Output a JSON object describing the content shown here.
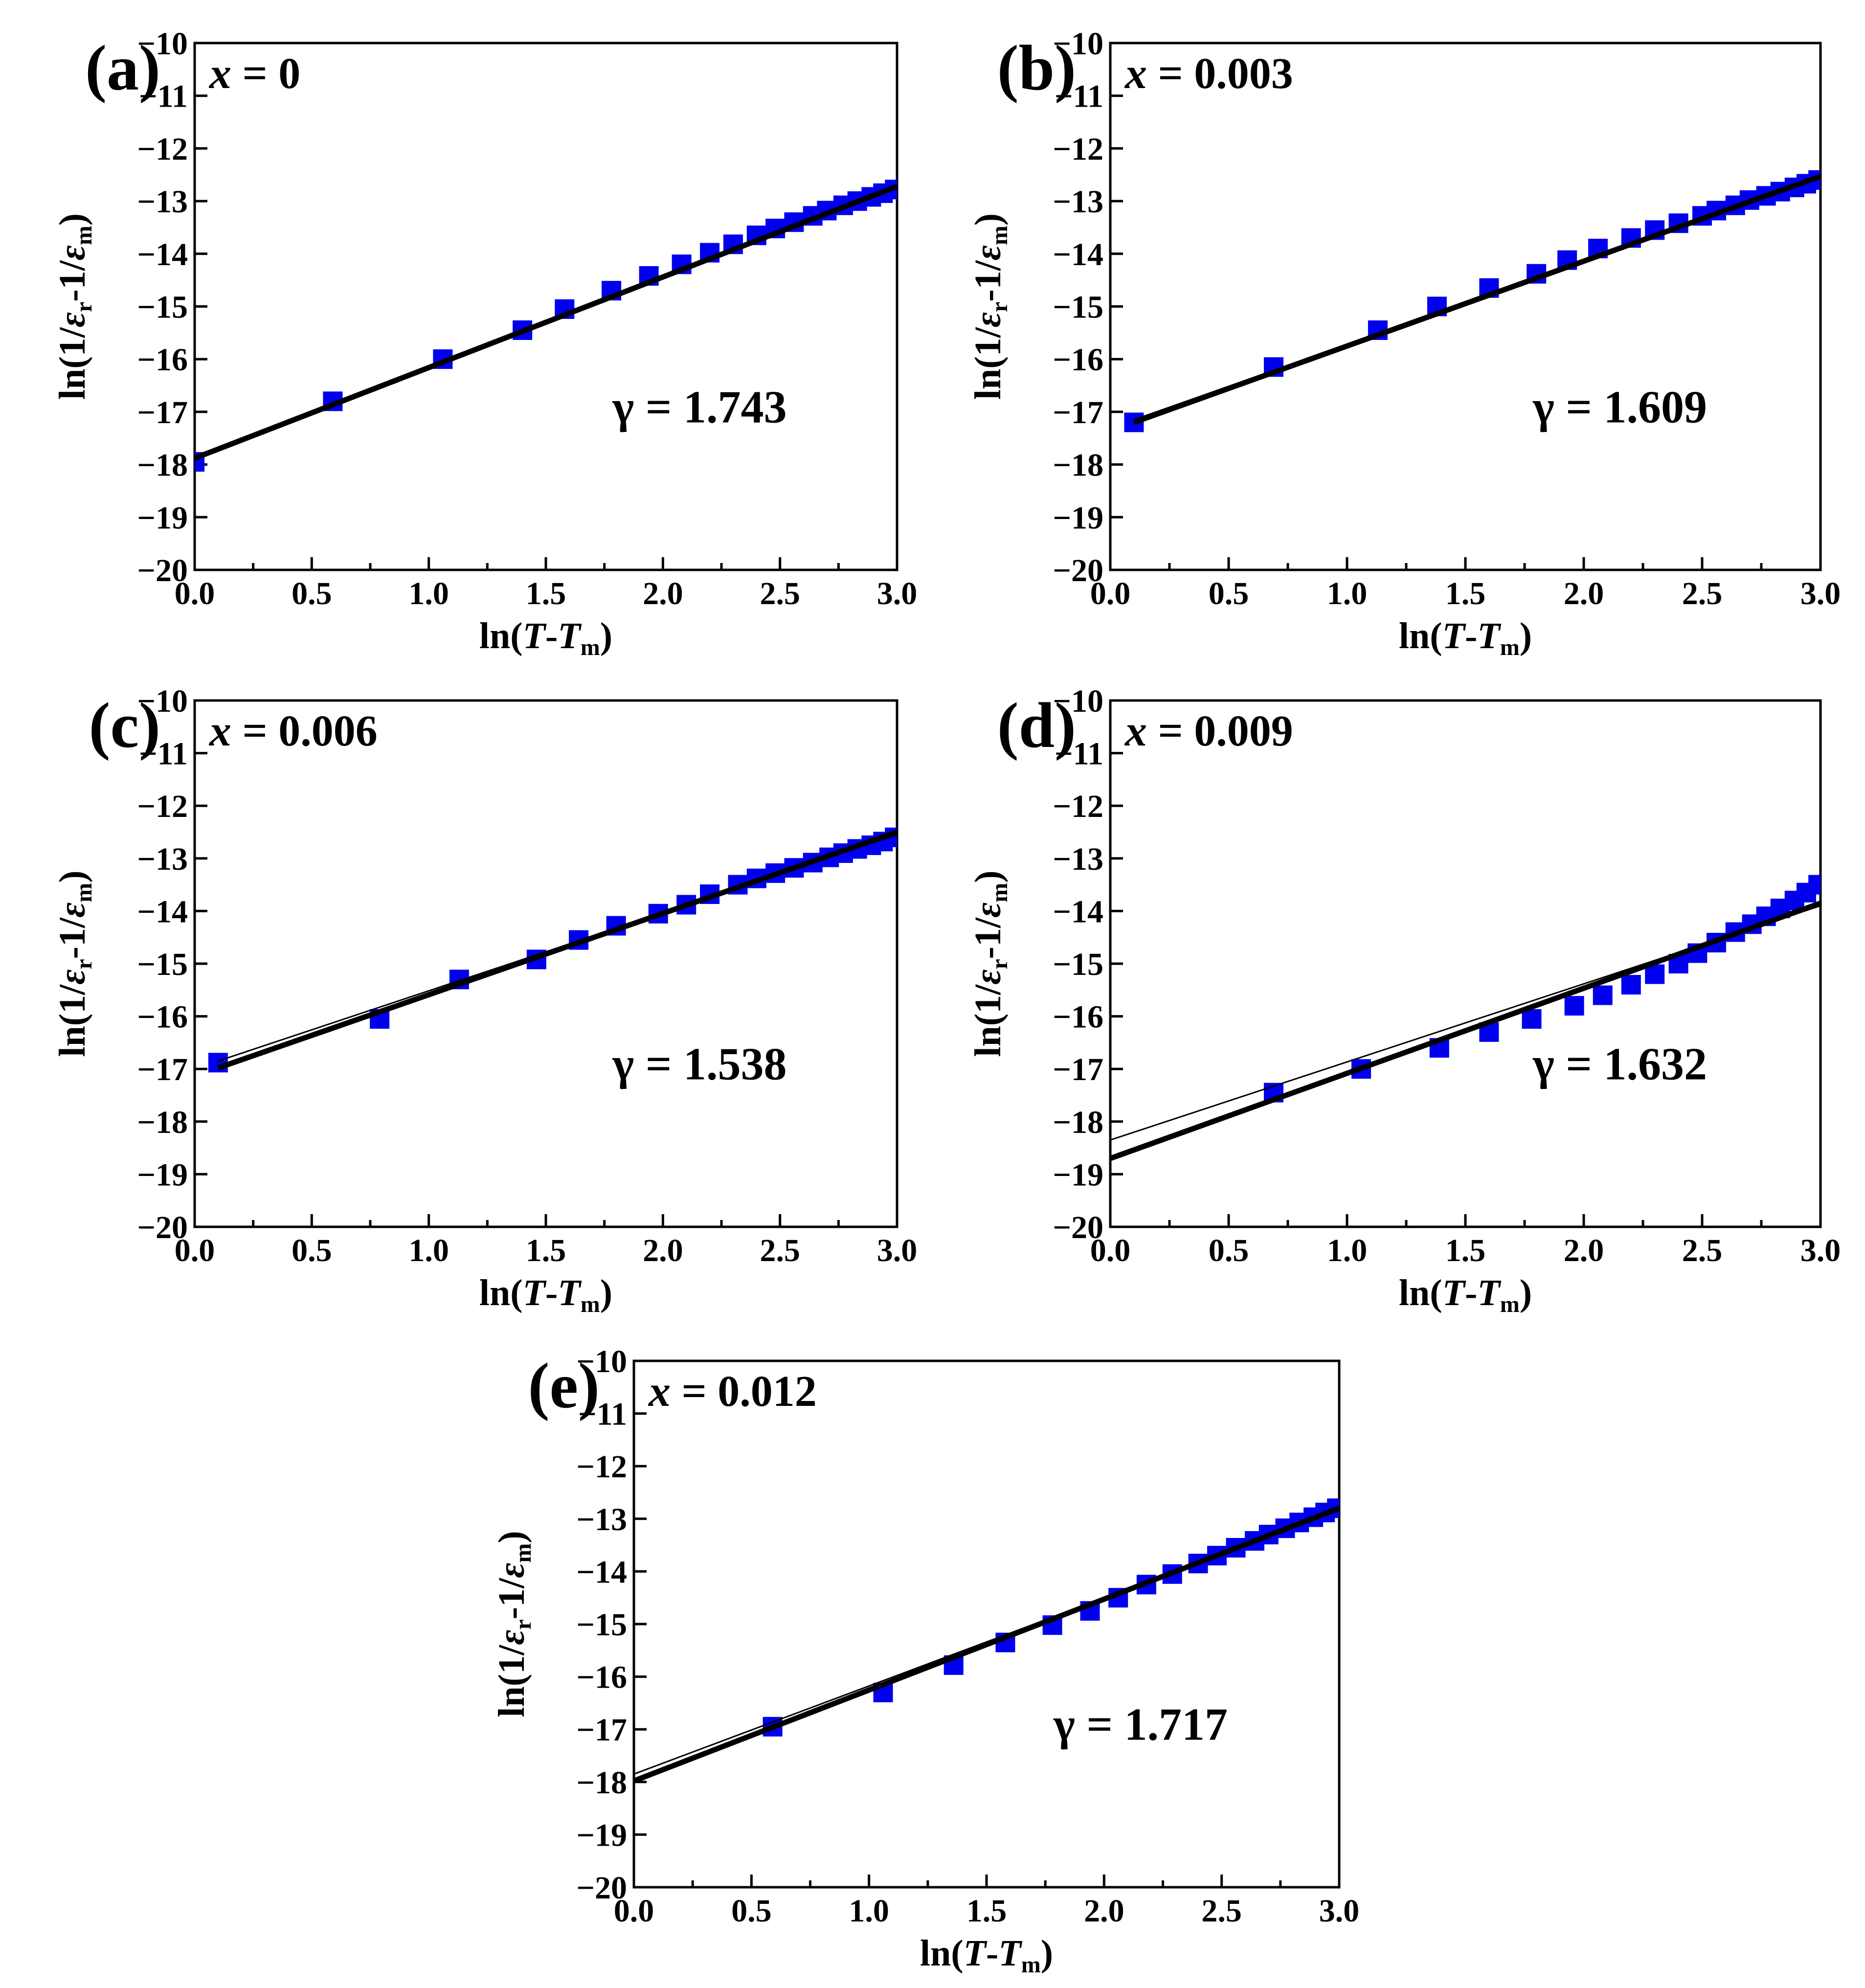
{
  "figure": {
    "x_label": {
      "prefix": "ln(",
      "T1": "T",
      "dash": "-",
      "T2": "T",
      "sub": "m",
      "suffix": ")"
    },
    "y_label": {
      "p1": "ln(1/",
      "e1": "ε",
      "s1": "r",
      "p2": "-1/",
      "e2": "ε",
      "s2": "m",
      "p3": ")"
    },
    "colors": {
      "marker": "#0000ee",
      "line": "#000000",
      "frame": "#000000"
    }
  },
  "chart_data": [
    {
      "type": "scatter",
      "panel": "(a)",
      "composition": {
        "var": "x",
        "eq": " = 0"
      },
      "gamma_text": "γ = 1.743",
      "xlim": [
        0,
        3
      ],
      "ylim": [
        -20,
        -10
      ],
      "xticks": [
        "0.0",
        "0.5",
        "1.0",
        "1.5",
        "2.0",
        "2.5",
        "3.0"
      ],
      "yticks": [
        "−10",
        "−11",
        "−12",
        "−13",
        "−14",
        "−15",
        "−16",
        "−17",
        "−18",
        "−19",
        "−20"
      ],
      "x": [
        0.0,
        0.59,
        1.06,
        1.4,
        1.58,
        1.78,
        1.94,
        2.08,
        2.2,
        2.3,
        2.4,
        2.48,
        2.56,
        2.64,
        2.7,
        2.77,
        2.83,
        2.89,
        2.94,
        2.99
      ],
      "y": [
        -17.95,
        -16.8,
        -16.0,
        -15.45,
        -15.05,
        -14.7,
        -14.42,
        -14.2,
        -13.98,
        -13.82,
        -13.65,
        -13.52,
        -13.4,
        -13.28,
        -13.18,
        -13.08,
        -13.0,
        -12.92,
        -12.85,
        -12.78
      ],
      "fit_line": [
        [
          0,
          -17.88
        ],
        [
          3,
          -12.72
        ]
      ],
      "thin_line": [
        [
          0,
          -17.85
        ],
        [
          3,
          -12.75
        ]
      ]
    },
    {
      "type": "scatter",
      "panel": "(b)",
      "composition": {
        "var": "x",
        "eq": " = 0.003"
      },
      "gamma_text": "γ = 1.609",
      "xlim": [
        0,
        3
      ],
      "ylim": [
        -20,
        -10
      ],
      "xticks": [
        "0.0",
        "0.5",
        "1.0",
        "1.5",
        "2.0",
        "2.5",
        "3.0"
      ],
      "yticks": [
        "−10",
        "−11",
        "−12",
        "−13",
        "−14",
        "−15",
        "−16",
        "−17",
        "−18",
        "−19",
        "−20"
      ],
      "x": [
        0.1,
        0.69,
        1.13,
        1.38,
        1.6,
        1.8,
        1.93,
        2.06,
        2.2,
        2.3,
        2.4,
        2.5,
        2.56,
        2.64,
        2.7,
        2.77,
        2.83,
        2.89,
        2.94,
        2.99
      ],
      "y": [
        -17.2,
        -16.15,
        -15.45,
        -15.0,
        -14.65,
        -14.38,
        -14.12,
        -13.9,
        -13.7,
        -13.55,
        -13.42,
        -13.28,
        -13.18,
        -13.08,
        -12.98,
        -12.9,
        -12.82,
        -12.74,
        -12.67,
        -12.6
      ],
      "fit_line": [
        [
          0.1,
          -17.2
        ],
        [
          3,
          -12.53
        ]
      ],
      "thin_line": [
        [
          0.1,
          -17.15
        ],
        [
          3,
          -12.55
        ]
      ]
    },
    {
      "type": "scatter",
      "panel": "(c)",
      "composition": {
        "var": "x",
        "eq": " = 0.006"
      },
      "gamma_text": "γ = 1.538",
      "xlim": [
        0,
        3
      ],
      "ylim": [
        -20,
        -10
      ],
      "xticks": [
        "0.0",
        "0.5",
        "1.0",
        "1.5",
        "2.0",
        "2.5",
        "3.0"
      ],
      "yticks": [
        "−10",
        "−11",
        "−12",
        "−13",
        "−14",
        "−15",
        "−16",
        "−17",
        "−18",
        "−19",
        "−20"
      ],
      "x": [
        0.1,
        0.79,
        1.13,
        1.46,
        1.64,
        1.8,
        1.98,
        2.1,
        2.2,
        2.32,
        2.4,
        2.48,
        2.56,
        2.64,
        2.71,
        2.77,
        2.83,
        2.89,
        2.94,
        2.99
      ],
      "y": [
        -16.88,
        -16.05,
        -15.3,
        -14.92,
        -14.55,
        -14.28,
        -14.05,
        -13.88,
        -13.68,
        -13.5,
        -13.38,
        -13.28,
        -13.18,
        -13.08,
        -12.98,
        -12.9,
        -12.82,
        -12.75,
        -12.68,
        -12.6
      ],
      "fit_line": [
        [
          0.1,
          -16.98
        ],
        [
          3,
          -12.5
        ]
      ],
      "thin_line": [
        [
          0.1,
          -16.85
        ],
        [
          3,
          -12.55
        ]
      ]
    },
    {
      "type": "scatter",
      "panel": "(d)",
      "composition": {
        "var": "x",
        "eq": " = 0.009"
      },
      "gamma_text": "γ = 1.632",
      "xlim": [
        0,
        3
      ],
      "ylim": [
        -20,
        -10
      ],
      "xticks": [
        "0.0",
        "0.5",
        "1.0",
        "1.5",
        "2.0",
        "2.5",
        "3.0"
      ],
      "yticks": [
        "−10",
        "−11",
        "−12",
        "−13",
        "−14",
        "−15",
        "−16",
        "−17",
        "−18",
        "−19",
        "−20"
      ],
      "x": [
        0.69,
        1.06,
        1.39,
        1.6,
        1.78,
        1.96,
        2.08,
        2.2,
        2.3,
        2.4,
        2.48,
        2.56,
        2.64,
        2.71,
        2.77,
        2.83,
        2.89,
        2.94,
        2.99
      ],
      "y": [
        -17.45,
        -17.0,
        -16.6,
        -16.3,
        -16.05,
        -15.8,
        -15.6,
        -15.4,
        -15.2,
        -15.0,
        -14.8,
        -14.6,
        -14.4,
        -14.25,
        -14.1,
        -13.95,
        -13.8,
        -13.65,
        -13.5
      ],
      "fit_line": [
        [
          0,
          -18.7
        ],
        [
          3,
          -13.85
        ]
      ],
      "thin_line": [
        [
          0,
          -18.35
        ],
        [
          3,
          -13.9
        ]
      ]
    },
    {
      "type": "scatter",
      "panel": "(e)",
      "composition": {
        "var": "x",
        "eq": " = 0.012"
      },
      "gamma_text": "γ = 1.717",
      "xlim": [
        0,
        3
      ],
      "ylim": [
        -20,
        -10
      ],
      "xticks": [
        "0.0",
        "0.5",
        "1.0",
        "1.5",
        "2.0",
        "2.5",
        "3.0"
      ],
      "yticks": [
        "−10",
        "−11",
        "−12",
        "−13",
        "−14",
        "−15",
        "−16",
        "−17",
        "−18",
        "−19",
        "−20"
      ],
      "x": [
        0.59,
        1.06,
        1.36,
        1.58,
        1.78,
        1.94,
        2.06,
        2.18,
        2.29,
        2.4,
        2.48,
        2.56,
        2.64,
        2.7,
        2.77,
        2.83,
        2.89,
        2.94,
        2.99
      ],
      "y": [
        -16.95,
        -16.3,
        -15.78,
        -15.35,
        -15.02,
        -14.75,
        -14.5,
        -14.25,
        -14.05,
        -13.85,
        -13.7,
        -13.55,
        -13.42,
        -13.3,
        -13.18,
        -13.07,
        -12.97,
        -12.88,
        -12.8
      ],
      "fit_line": [
        [
          0,
          -17.98
        ],
        [
          3,
          -12.8
        ]
      ],
      "thin_line": [
        [
          0,
          -17.85
        ],
        [
          3,
          -12.83
        ]
      ]
    }
  ]
}
